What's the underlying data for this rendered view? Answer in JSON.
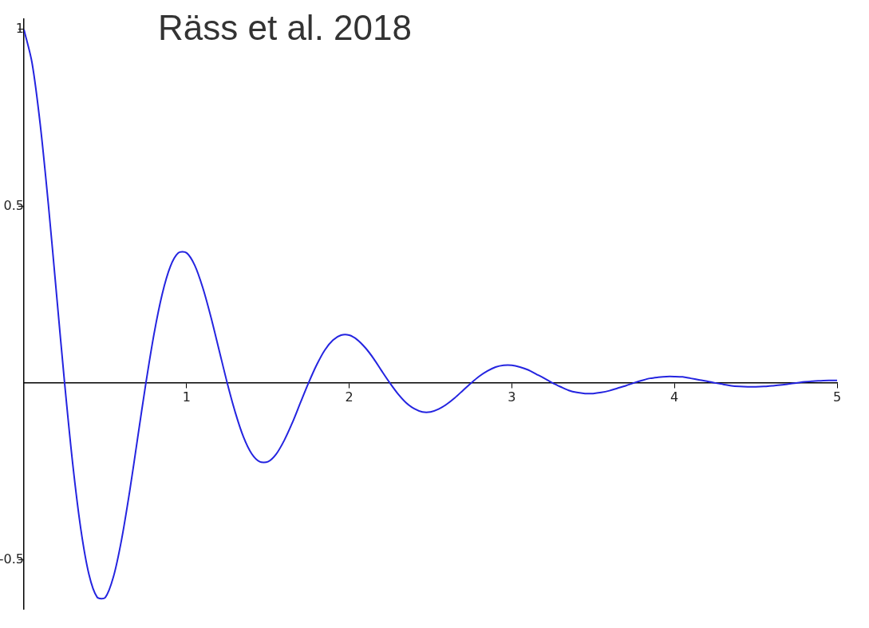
{
  "chart_data": {
    "type": "line",
    "title": "Räss et al. 2018",
    "x": [
      0,
      0.05,
      0.1,
      0.15,
      0.2,
      0.25,
      0.3,
      0.35,
      0.4,
      0.45,
      0.5,
      0.55,
      0.6,
      0.65,
      0.7,
      0.75,
      0.8,
      0.85,
      0.9,
      0.95,
      1,
      1.05,
      1.1,
      1.15,
      1.2,
      1.25,
      1.3,
      1.35,
      1.4,
      1.45,
      1.5,
      1.55,
      1.6,
      1.65,
      1.7,
      1.75,
      1.8,
      1.85,
      1.9,
      1.95,
      2,
      2.05,
      2.1,
      2.15,
      2.2,
      2.25,
      2.3,
      2.35,
      2.4,
      2.45,
      2.5,
      2.55,
      2.6,
      2.65,
      2.7,
      2.75,
      2.8,
      2.85,
      2.9,
      2.95,
      3,
      3.05,
      3.1,
      3.15,
      3.2,
      3.25,
      3.3,
      3.35,
      3.4,
      3.45,
      3.5,
      3.55,
      3.6,
      3.65,
      3.7,
      3.75,
      3.8,
      3.85,
      3.9,
      3.95,
      4,
      4.05,
      4.1,
      4.15,
      4.2,
      4.25,
      4.3,
      4.35,
      4.4,
      4.45,
      4.5,
      4.55,
      4.6,
      4.65,
      4.7,
      4.75,
      4.8,
      4.85,
      4.9,
      4.95,
      5
    ],
    "series": [
      {
        "color": "#2424e0",
        "values": [
          1,
          0.905,
          0.732,
          0.506,
          0.253,
          0,
          -0.229,
          -0.414,
          -0.542,
          -0.606,
          -0.607,
          -0.549,
          -0.444,
          -0.307,
          -0.153,
          0,
          0.139,
          0.251,
          0.329,
          0.368,
          0.368,
          0.333,
          0.269,
          0.186,
          0.093,
          0,
          -0.084,
          -0.153,
          -0.2,
          -0.223,
          -0.223,
          -0.202,
          -0.163,
          -0.113,
          -0.056,
          0,
          0.051,
          0.093,
          0.121,
          0.135,
          0.135,
          0.122,
          0.099,
          0.069,
          0.034,
          0,
          -0.031,
          -0.056,
          -0.073,
          -0.082,
          -0.082,
          -0.074,
          -0.06,
          -0.042,
          -0.021,
          0,
          0.019,
          0.034,
          0.045,
          0.05,
          0.05,
          0.045,
          0.037,
          0.025,
          0.013,
          0,
          -0.011,
          -0.021,
          -0.027,
          -0.03,
          -0.03,
          -0.027,
          -0.022,
          -0.015,
          -0.008,
          0,
          0.007,
          0.013,
          0.016,
          0.018,
          0.018,
          0.017,
          0.013,
          0.009,
          0.005,
          0,
          -0.004,
          -0.008,
          -0.01,
          -0.011,
          -0.011,
          -0.01,
          -0.008,
          -0.006,
          -0.003,
          0,
          0.003,
          0.005,
          0.006,
          0.007,
          0.007
        ]
      }
    ],
    "xlim": [
      0,
      5
    ],
    "ylim": [
      -0.64,
      1.03
    ],
    "xticks": [
      1,
      2,
      3,
      4,
      5
    ],
    "yticks": [
      -0.5,
      0.5,
      1
    ],
    "grid": false,
    "marker": "none",
    "line_style": "solid"
  }
}
